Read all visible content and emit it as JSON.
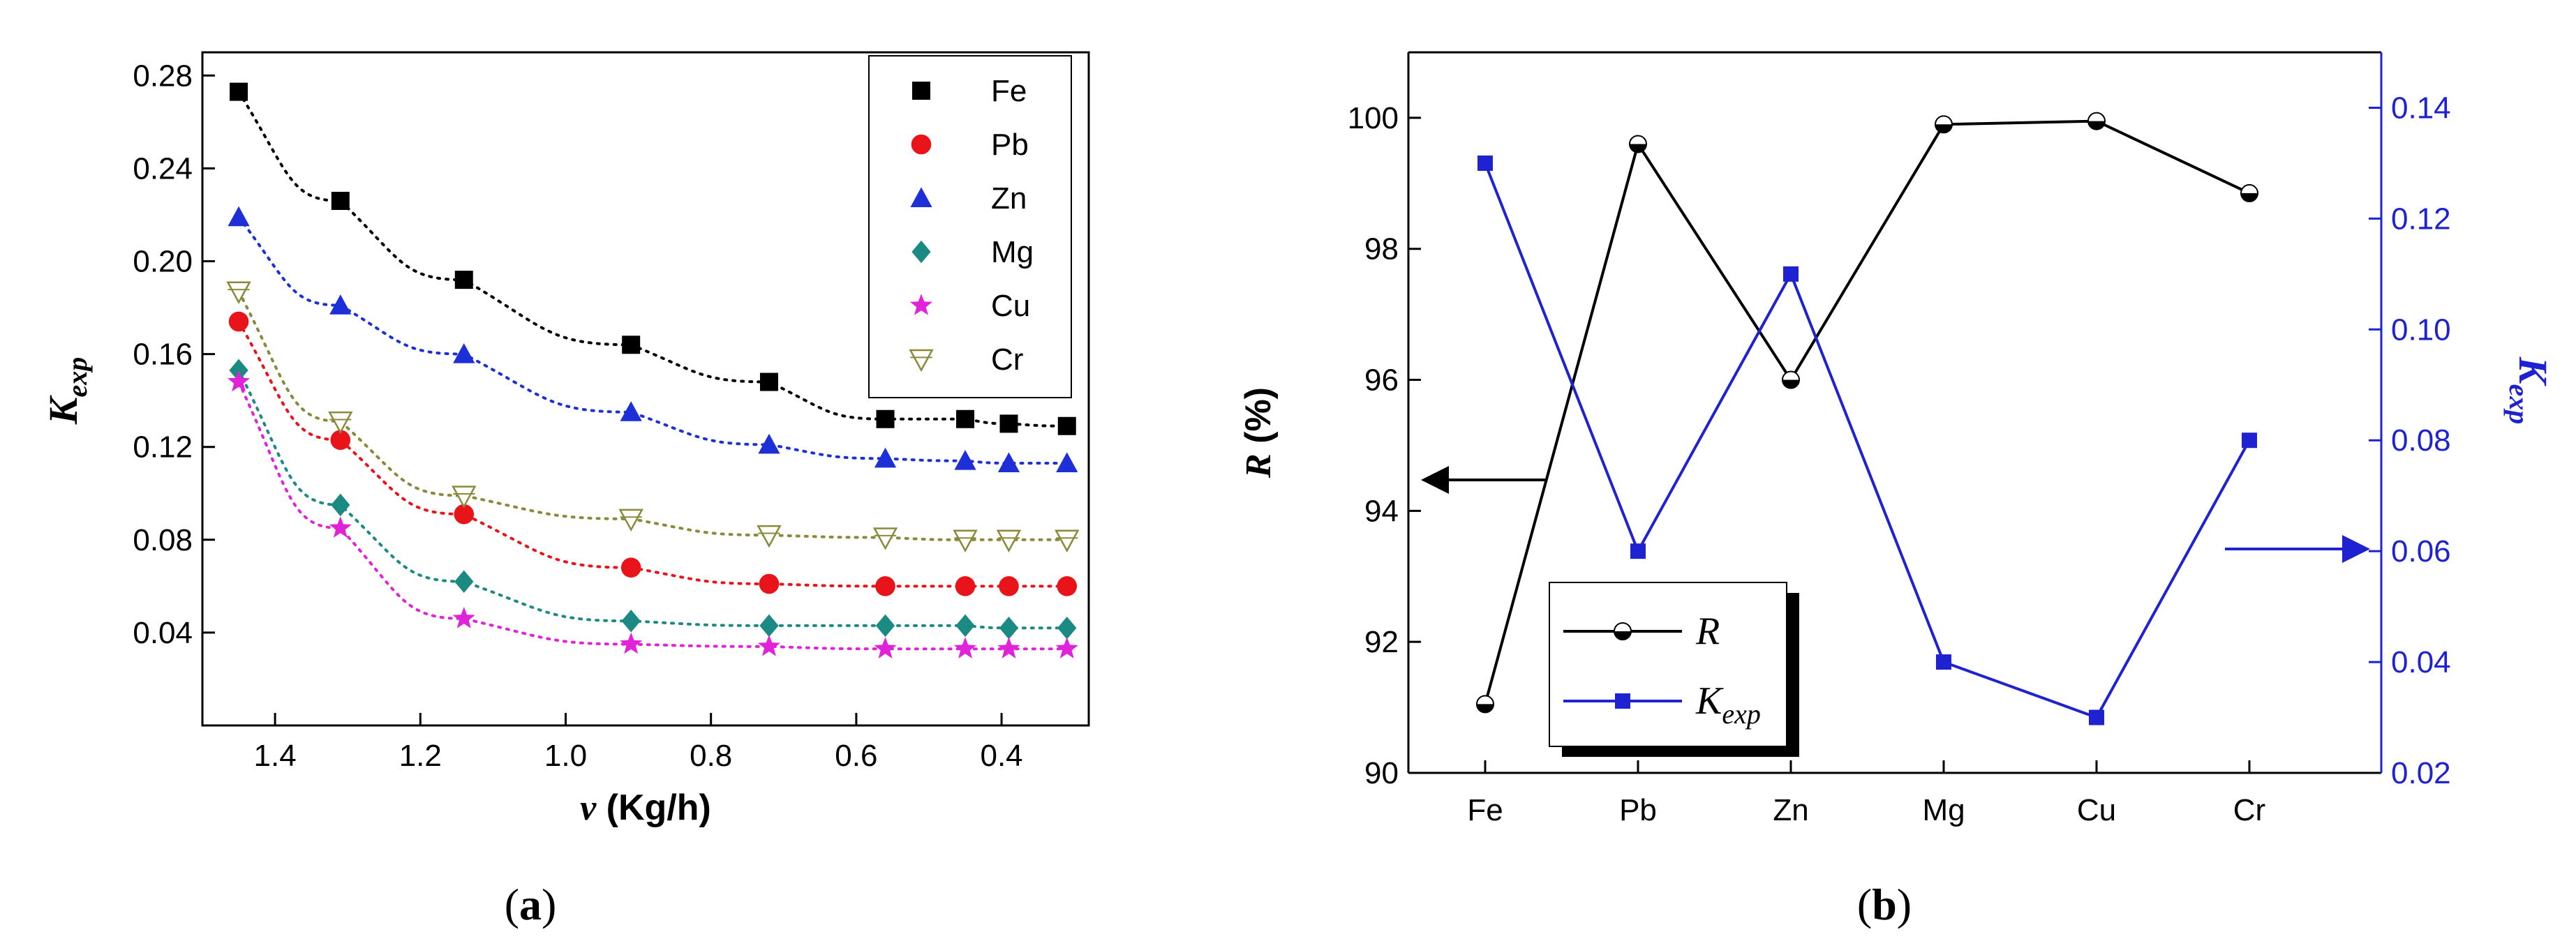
{
  "chart_data": [
    {
      "panel": "a",
      "type": "scatter",
      "caption": {
        "open": "(",
        "letter": "a",
        "close": ")"
      },
      "xlabel": {
        "symbol": "v",
        "unit": " (Kg/h)"
      },
      "ylabel": {
        "main": "K",
        "sub": "exp"
      },
      "xlim": [
        1.5,
        0.28
      ],
      "ylim": [
        0.0,
        0.29
      ],
      "xticks": [
        1.4,
        1.2,
        1.0,
        0.8,
        0.6,
        0.4
      ],
      "xtick_labels": [
        "1.4",
        "1.2",
        "1.0",
        "0.8",
        "0.6",
        "0.4"
      ],
      "yticks": [
        0.04,
        0.08,
        0.12,
        0.16,
        0.2,
        0.24,
        0.28
      ],
      "ytick_labels": [
        "0.04",
        "0.08",
        "0.12",
        "0.16",
        "0.20",
        "0.24",
        "0.28"
      ],
      "x": [
        1.45,
        1.31,
        1.14,
        0.91,
        0.72,
        0.56,
        0.45,
        0.39,
        0.31
      ],
      "legend_position": "top-right",
      "series": [
        {
          "name": "Fe",
          "marker": "square",
          "color": "#000000",
          "values": [
            0.273,
            0.226,
            0.192,
            0.164,
            0.148,
            0.132,
            0.132,
            0.13,
            0.129
          ]
        },
        {
          "name": "Pb",
          "marker": "circle",
          "color": "#e8141a",
          "values": [
            0.174,
            0.123,
            0.091,
            0.068,
            0.061,
            0.06,
            0.06,
            0.06,
            0.06
          ]
        },
        {
          "name": "Zn",
          "marker": "triangle",
          "color": "#1d2fd6",
          "values": [
            0.219,
            0.181,
            0.16,
            0.135,
            0.121,
            0.115,
            0.114,
            0.113,
            0.113
          ]
        },
        {
          "name": "Mg",
          "marker": "diamond",
          "color": "#1b8a83",
          "values": [
            0.153,
            0.095,
            0.062,
            0.045,
            0.043,
            0.043,
            0.043,
            0.042,
            0.042
          ]
        },
        {
          "name": "Cu",
          "marker": "star",
          "color": "#e022d8",
          "values": [
            0.148,
            0.085,
            0.046,
            0.035,
            0.034,
            0.033,
            0.033,
            0.033,
            0.033
          ]
        },
        {
          "name": "Cr",
          "marker": "open-triangle-down",
          "color": "#8a8a3a",
          "values": [
            0.187,
            0.131,
            0.099,
            0.089,
            0.082,
            0.081,
            0.08,
            0.08,
            0.08
          ]
        }
      ]
    },
    {
      "panel": "b",
      "type": "line",
      "caption": {
        "open": "(",
        "letter": "b",
        "close": ")"
      },
      "categories": [
        "Fe",
        "Pb",
        "Zn",
        "Mg",
        "Cu",
        "Cr"
      ],
      "ylabel_left": {
        "symbol": "R",
        "unit": " (%)"
      },
      "ylabel_right": {
        "main": "K",
        "sub": "exp"
      },
      "ylim_left": [
        90,
        101
      ],
      "ylim_right": [
        0.02,
        0.15
      ],
      "yticks_left": [
        90,
        92,
        94,
        96,
        98,
        100
      ],
      "yticks_left_labels": [
        "90",
        "92",
        "94",
        "96",
        "98",
        "100"
      ],
      "yticks_right": [
        0.02,
        0.04,
        0.06,
        0.08,
        0.1,
        0.12,
        0.14
      ],
      "yticks_right_labels": [
        "0.02",
        "0.04",
        "0.06",
        "0.08",
        "0.10",
        "0.12",
        "0.14"
      ],
      "legend_position": "bottom-left",
      "series": [
        {
          "name": "R",
          "axis": "left",
          "marker": "half-circle",
          "color": "#000000",
          "values": [
            91.05,
            99.6,
            96.0,
            99.9,
            99.95,
            98.85
          ]
        },
        {
          "name": "K",
          "sub": "exp",
          "axis": "right",
          "marker": "square",
          "color": "#1f22d0",
          "values": [
            0.13,
            0.06,
            0.11,
            0.04,
            0.03,
            0.08
          ]
        }
      ]
    }
  ]
}
